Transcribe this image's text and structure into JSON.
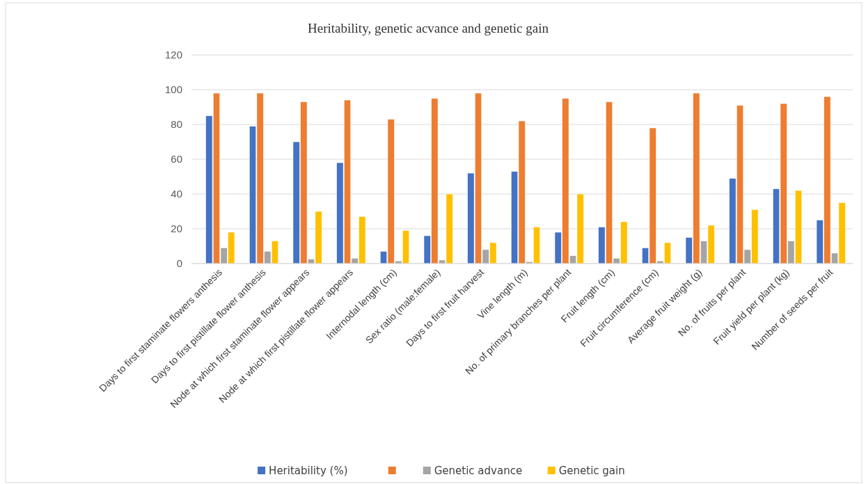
{
  "chart_data": {
    "type": "bar",
    "title": "Heritability,  genetic acvance and genetic gain",
    "categories": [
      "Days to first staminate flowers anthesis",
      "Days to first pistillate flower anthesis",
      "Node at which first staminate flower appears",
      "Node at which first pistillate flower appears",
      "Internodal length (cm)",
      "Sex ratio (male:female)",
      "Days to first fruit harvest",
      "Vine length (m)",
      "No. of primary branches per plant",
      "Fruit length (cm)",
      "Fruit circumference (cm)",
      "Average fruit weight (g)",
      "No. of fruits per plant",
      "Fruit yield per plant (kg)",
      "Number of seeds per fruit"
    ],
    "series": [
      {
        "name": "Heritability (%)",
        "color": "#4472c4",
        "values": [
          85,
          79,
          70,
          58,
          7,
          16,
          52,
          53,
          18,
          21,
          9,
          15,
          49,
          43,
          25
        ]
      },
      {
        "color": "#ed7d31",
        "values": [
          98,
          98,
          93,
          94,
          83,
          95,
          98,
          82,
          95,
          93,
          78,
          98,
          91,
          92,
          96
        ]
      },
      {
        "name": "Genetic advance",
        "color": "#a5a5a5",
        "values": [
          9,
          7,
          2.5,
          3,
          1.5,
          2,
          8,
          1,
          4.5,
          3,
          1.5,
          13,
          8,
          13,
          6
        ]
      },
      {
        "name": "Genetic gain",
        "color": "#ffc000",
        "values": [
          18,
          13,
          30,
          27,
          19,
          40,
          12,
          21,
          40,
          24,
          12,
          22,
          31,
          42,
          35
        ]
      }
    ],
    "ylim": [
      0,
      120
    ],
    "yticks": [
      0,
      20,
      40,
      60,
      80,
      100,
      120
    ],
    "grid": "y",
    "legend": "bottom"
  }
}
